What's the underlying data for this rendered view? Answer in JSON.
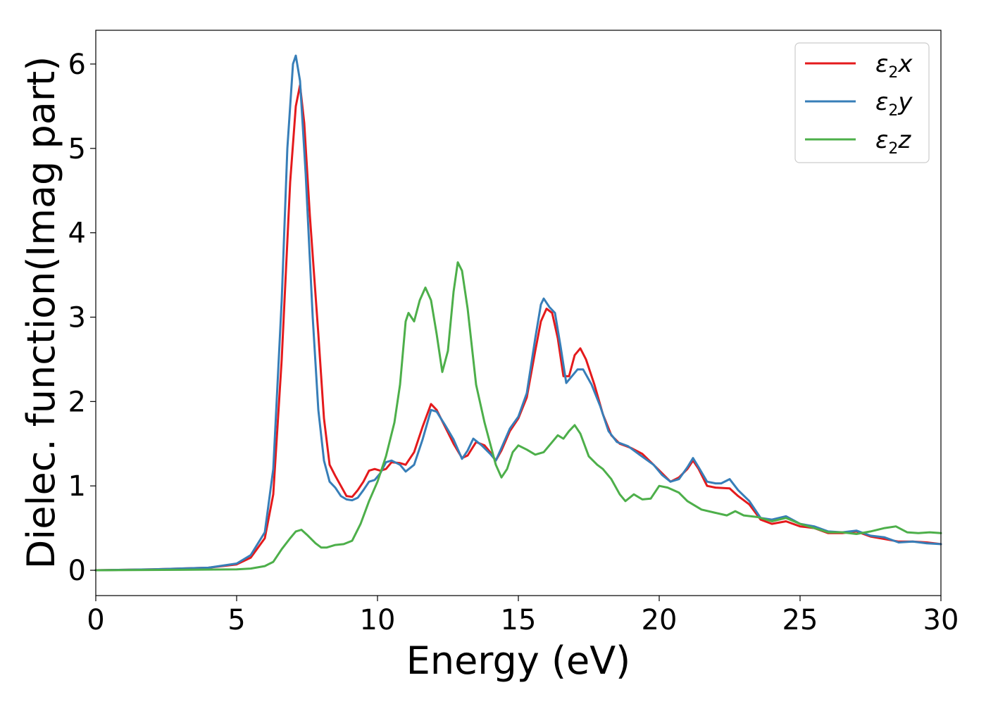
{
  "chart_data": {
    "type": "line",
    "xlabel": "Energy (eV)",
    "ylabel": "Dielec. function(Imag part)",
    "xlim": [
      0,
      30
    ],
    "ylim": [
      -0.3,
      6.4
    ],
    "x_ticks": [
      0,
      5,
      10,
      15,
      20,
      25,
      30
    ],
    "y_ticks": [
      0,
      1,
      2,
      3,
      4,
      5,
      6
    ],
    "grid": false,
    "legend_position": "top-right",
    "series": [
      {
        "name": "ε2x",
        "legend_main": "ε",
        "legend_sub": "2",
        "legend_suffix": "x",
        "color": "#e41a1c",
        "points": [
          [
            0,
            0
          ],
          [
            2,
            0.01
          ],
          [
            4,
            0.03
          ],
          [
            5,
            0.07
          ],
          [
            5.5,
            0.15
          ],
          [
            6,
            0.38
          ],
          [
            6.3,
            0.9
          ],
          [
            6.6,
            2.5
          ],
          [
            6.9,
            4.6
          ],
          [
            7.1,
            5.5
          ],
          [
            7.25,
            5.75
          ],
          [
            7.4,
            5.3
          ],
          [
            7.6,
            4.2
          ],
          [
            7.9,
            2.8
          ],
          [
            8.1,
            1.8
          ],
          [
            8.3,
            1.25
          ],
          [
            8.5,
            1.12
          ],
          [
            8.7,
            1.0
          ],
          [
            8.9,
            0.88
          ],
          [
            9.1,
            0.87
          ],
          [
            9.3,
            0.95
          ],
          [
            9.5,
            1.05
          ],
          [
            9.7,
            1.18
          ],
          [
            9.9,
            1.2
          ],
          [
            10.1,
            1.18
          ],
          [
            10.3,
            1.2
          ],
          [
            10.5,
            1.28
          ],
          [
            10.8,
            1.27
          ],
          [
            11.0,
            1.25
          ],
          [
            11.3,
            1.4
          ],
          [
            11.6,
            1.7
          ],
          [
            11.9,
            1.97
          ],
          [
            12.1,
            1.9
          ],
          [
            12.4,
            1.7
          ],
          [
            12.7,
            1.5
          ],
          [
            13.0,
            1.33
          ],
          [
            13.2,
            1.36
          ],
          [
            13.5,
            1.52
          ],
          [
            13.8,
            1.48
          ],
          [
            14.0,
            1.4
          ],
          [
            14.2,
            1.3
          ],
          [
            14.4,
            1.42
          ],
          [
            14.7,
            1.65
          ],
          [
            15.0,
            1.8
          ],
          [
            15.3,
            2.05
          ],
          [
            15.6,
            2.6
          ],
          [
            15.8,
            2.95
          ],
          [
            16.0,
            3.1
          ],
          [
            16.2,
            3.05
          ],
          [
            16.4,
            2.75
          ],
          [
            16.6,
            2.3
          ],
          [
            16.8,
            2.3
          ],
          [
            17.0,
            2.55
          ],
          [
            17.2,
            2.63
          ],
          [
            17.4,
            2.5
          ],
          [
            17.7,
            2.2
          ],
          [
            18.0,
            1.85
          ],
          [
            18.3,
            1.6
          ],
          [
            18.6,
            1.5
          ],
          [
            19.0,
            1.45
          ],
          [
            19.4,
            1.38
          ],
          [
            19.8,
            1.25
          ],
          [
            20.1,
            1.15
          ],
          [
            20.4,
            1.05
          ],
          [
            20.7,
            1.1
          ],
          [
            21.0,
            1.2
          ],
          [
            21.2,
            1.3
          ],
          [
            21.4,
            1.2
          ],
          [
            21.7,
            1.0
          ],
          [
            22.0,
            0.98
          ],
          [
            22.5,
            0.97
          ],
          [
            22.8,
            0.88
          ],
          [
            23.2,
            0.78
          ],
          [
            23.6,
            0.6
          ],
          [
            24.0,
            0.55
          ],
          [
            24.5,
            0.58
          ],
          [
            25.0,
            0.52
          ],
          [
            25.5,
            0.5
          ],
          [
            26.0,
            0.44
          ],
          [
            26.5,
            0.44
          ],
          [
            27.0,
            0.46
          ],
          [
            27.5,
            0.4
          ],
          [
            28.0,
            0.37
          ],
          [
            28.5,
            0.34
          ],
          [
            29.0,
            0.34
          ],
          [
            29.5,
            0.33
          ],
          [
            30,
            0.31
          ]
        ]
      },
      {
        "name": "ε2y",
        "legend_main": "ε",
        "legend_sub": "2",
        "legend_suffix": "y",
        "color": "#377eb8",
        "points": [
          [
            0,
            0
          ],
          [
            2,
            0.01
          ],
          [
            4,
            0.03
          ],
          [
            5,
            0.08
          ],
          [
            5.5,
            0.18
          ],
          [
            6,
            0.45
          ],
          [
            6.3,
            1.2
          ],
          [
            6.6,
            3.2
          ],
          [
            6.8,
            5.0
          ],
          [
            7.0,
            6.0
          ],
          [
            7.1,
            6.1
          ],
          [
            7.25,
            5.8
          ],
          [
            7.45,
            4.7
          ],
          [
            7.7,
            3.0
          ],
          [
            7.9,
            1.9
          ],
          [
            8.1,
            1.3
          ],
          [
            8.3,
            1.05
          ],
          [
            8.5,
            0.98
          ],
          [
            8.7,
            0.88
          ],
          [
            8.9,
            0.84
          ],
          [
            9.1,
            0.83
          ],
          [
            9.3,
            0.86
          ],
          [
            9.5,
            0.95
          ],
          [
            9.7,
            1.05
          ],
          [
            9.9,
            1.07
          ],
          [
            10.1,
            1.15
          ],
          [
            10.3,
            1.28
          ],
          [
            10.5,
            1.3
          ],
          [
            10.8,
            1.25
          ],
          [
            11.0,
            1.17
          ],
          [
            11.3,
            1.25
          ],
          [
            11.6,
            1.55
          ],
          [
            11.9,
            1.9
          ],
          [
            12.1,
            1.88
          ],
          [
            12.4,
            1.72
          ],
          [
            12.7,
            1.55
          ],
          [
            13.0,
            1.32
          ],
          [
            13.2,
            1.42
          ],
          [
            13.4,
            1.56
          ],
          [
            13.7,
            1.48
          ],
          [
            14.0,
            1.38
          ],
          [
            14.2,
            1.3
          ],
          [
            14.4,
            1.45
          ],
          [
            14.7,
            1.68
          ],
          [
            15.0,
            1.82
          ],
          [
            15.3,
            2.1
          ],
          [
            15.6,
            2.75
          ],
          [
            15.8,
            3.15
          ],
          [
            15.9,
            3.22
          ],
          [
            16.1,
            3.12
          ],
          [
            16.3,
            3.05
          ],
          [
            16.5,
            2.65
          ],
          [
            16.7,
            2.22
          ],
          [
            16.9,
            2.3
          ],
          [
            17.1,
            2.38
          ],
          [
            17.3,
            2.38
          ],
          [
            17.6,
            2.2
          ],
          [
            17.9,
            1.95
          ],
          [
            18.2,
            1.65
          ],
          [
            18.5,
            1.52
          ],
          [
            18.9,
            1.47
          ],
          [
            19.3,
            1.37
          ],
          [
            19.8,
            1.25
          ],
          [
            20.1,
            1.13
          ],
          [
            20.4,
            1.05
          ],
          [
            20.7,
            1.08
          ],
          [
            21.0,
            1.22
          ],
          [
            21.2,
            1.33
          ],
          [
            21.4,
            1.22
          ],
          [
            21.7,
            1.05
          ],
          [
            22.0,
            1.03
          ],
          [
            22.2,
            1.03
          ],
          [
            22.5,
            1.08
          ],
          [
            22.8,
            0.95
          ],
          [
            23.2,
            0.82
          ],
          [
            23.6,
            0.62
          ],
          [
            24.0,
            0.6
          ],
          [
            24.5,
            0.64
          ],
          [
            25.0,
            0.55
          ],
          [
            25.5,
            0.52
          ],
          [
            26.0,
            0.46
          ],
          [
            26.5,
            0.45
          ],
          [
            27.0,
            0.47
          ],
          [
            27.5,
            0.41
          ],
          [
            28.0,
            0.39
          ],
          [
            28.5,
            0.33
          ],
          [
            29.0,
            0.34
          ],
          [
            29.5,
            0.32
          ],
          [
            30,
            0.31
          ]
        ]
      },
      {
        "name": "ε2z",
        "legend_main": "ε",
        "legend_sub": "2",
        "legend_suffix": "z",
        "color": "#4daf4a",
        "points": [
          [
            0,
            0
          ],
          [
            3,
            0.005
          ],
          [
            5,
            0.01
          ],
          [
            5.5,
            0.02
          ],
          [
            6,
            0.05
          ],
          [
            6.3,
            0.1
          ],
          [
            6.6,
            0.25
          ],
          [
            6.9,
            0.38
          ],
          [
            7.1,
            0.46
          ],
          [
            7.3,
            0.48
          ],
          [
            7.5,
            0.42
          ],
          [
            7.8,
            0.32
          ],
          [
            8.0,
            0.27
          ],
          [
            8.2,
            0.27
          ],
          [
            8.5,
            0.3
          ],
          [
            8.8,
            0.31
          ],
          [
            9.1,
            0.35
          ],
          [
            9.4,
            0.55
          ],
          [
            9.7,
            0.82
          ],
          [
            10.0,
            1.05
          ],
          [
            10.3,
            1.35
          ],
          [
            10.6,
            1.75
          ],
          [
            10.8,
            2.2
          ],
          [
            11.0,
            2.95
          ],
          [
            11.1,
            3.05
          ],
          [
            11.3,
            2.95
          ],
          [
            11.5,
            3.2
          ],
          [
            11.7,
            3.35
          ],
          [
            11.9,
            3.2
          ],
          [
            12.1,
            2.8
          ],
          [
            12.3,
            2.35
          ],
          [
            12.5,
            2.6
          ],
          [
            12.7,
            3.3
          ],
          [
            12.85,
            3.65
          ],
          [
            13.0,
            3.55
          ],
          [
            13.2,
            3.1
          ],
          [
            13.5,
            2.2
          ],
          [
            13.8,
            1.75
          ],
          [
            14.0,
            1.5
          ],
          [
            14.2,
            1.25
          ],
          [
            14.4,
            1.1
          ],
          [
            14.6,
            1.2
          ],
          [
            14.8,
            1.4
          ],
          [
            15.0,
            1.48
          ],
          [
            15.3,
            1.43
          ],
          [
            15.6,
            1.37
          ],
          [
            15.9,
            1.4
          ],
          [
            16.2,
            1.52
          ],
          [
            16.4,
            1.6
          ],
          [
            16.6,
            1.56
          ],
          [
            16.8,
            1.65
          ],
          [
            17.0,
            1.72
          ],
          [
            17.2,
            1.62
          ],
          [
            17.5,
            1.35
          ],
          [
            17.8,
            1.25
          ],
          [
            18.0,
            1.2
          ],
          [
            18.3,
            1.08
          ],
          [
            18.6,
            0.9
          ],
          [
            18.8,
            0.82
          ],
          [
            19.1,
            0.9
          ],
          [
            19.4,
            0.84
          ],
          [
            19.7,
            0.85
          ],
          [
            20.0,
            1.0
          ],
          [
            20.3,
            0.98
          ],
          [
            20.7,
            0.92
          ],
          [
            21.0,
            0.82
          ],
          [
            21.5,
            0.72
          ],
          [
            22.0,
            0.68
          ],
          [
            22.4,
            0.65
          ],
          [
            22.7,
            0.7
          ],
          [
            23.0,
            0.65
          ],
          [
            23.5,
            0.63
          ],
          [
            24.0,
            0.58
          ],
          [
            24.5,
            0.62
          ],
          [
            25.0,
            0.55
          ],
          [
            25.5,
            0.5
          ],
          [
            26.0,
            0.45
          ],
          [
            26.5,
            0.45
          ],
          [
            27.0,
            0.43
          ],
          [
            27.5,
            0.46
          ],
          [
            28.0,
            0.5
          ],
          [
            28.4,
            0.52
          ],
          [
            28.8,
            0.45
          ],
          [
            29.2,
            0.44
          ],
          [
            29.6,
            0.45
          ],
          [
            30,
            0.44
          ]
        ]
      }
    ]
  }
}
